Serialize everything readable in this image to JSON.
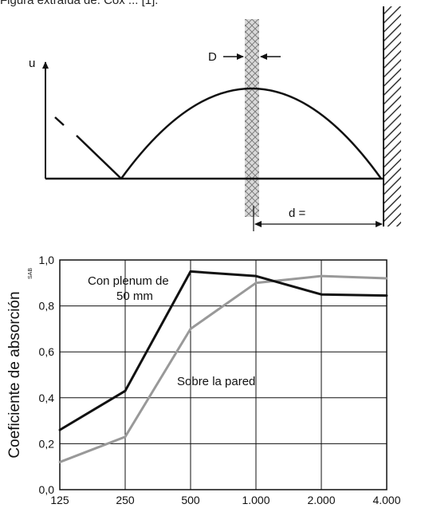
{
  "header": {
    "caption_fragment": "Figura extraída de: Cox ... [1]."
  },
  "diagram": {
    "u_label": "u",
    "D_label": "D",
    "d_label": "d ="
  },
  "chart_data": {
    "type": "line",
    "title": "",
    "xlabel": "",
    "ylabel": "Coeficiente de absorción",
    "ylabel_subscript": "SAB",
    "categories": [
      "125",
      "250",
      "500",
      "1.000",
      "2.000",
      "4.000"
    ],
    "yticks": [
      "0,0",
      "0,2",
      "0,4",
      "0,6",
      "0,8",
      "1,0"
    ],
    "ylim": [
      0,
      1.0
    ],
    "grid": true,
    "legend": "none",
    "series": [
      {
        "name": "Con plenum de 50 mm",
        "label_lines": [
          "Con plenum de",
          "50 mm"
        ],
        "color": "#111111",
        "values": [
          0.26,
          0.43,
          0.95,
          0.93,
          0.85,
          0.845
        ]
      },
      {
        "name": "Sobre la pared",
        "label_lines": [
          "Sobre la pared"
        ],
        "color": "#999999",
        "values": [
          0.12,
          0.23,
          0.7,
          0.9,
          0.93,
          0.92
        ]
      }
    ]
  }
}
